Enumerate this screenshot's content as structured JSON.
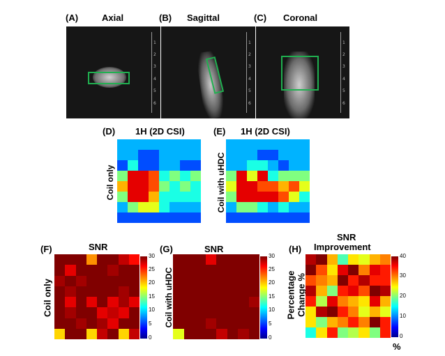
{
  "colors": {
    "roi": "#20b050"
  },
  "panels": {
    "a": {
      "letter": "(A)",
      "title": "Axial"
    },
    "b": {
      "letter": "(B)",
      "title": "Sagittal"
    },
    "c": {
      "letter": "(C)",
      "title": "Coronal"
    },
    "d": {
      "letter": "(D)",
      "title": "1H (2D CSI)",
      "ylabel": "Coil only"
    },
    "e": {
      "letter": "(E)",
      "title": "1H (2D CSI)",
      "ylabel": "Coil with uHDC"
    },
    "f": {
      "letter": "(F)",
      "title": "SNR",
      "ylabel": "Coil only"
    },
    "g": {
      "letter": "(G)",
      "title": "SNR",
      "ylabel": "Coil with uHDC"
    },
    "h": {
      "letter": "(H)",
      "title_line1": "SNR",
      "title_line2": "Improvement",
      "ylabel_line1": "Percentage",
      "ylabel_line2": "Change %",
      "unit": "%"
    }
  },
  "rulers": {
    "ticks": [
      "1",
      "2",
      "3",
      "4",
      "5",
      "6"
    ]
  },
  "colorbars": {
    "snr": {
      "ticks": [
        "30",
        "25",
        "20",
        "15",
        "10",
        "5",
        "0"
      ],
      "min": 0,
      "max": 30
    },
    "pct": {
      "ticks": [
        "40",
        "30",
        "20",
        "10",
        "0"
      ],
      "min": 0,
      "max": 40
    }
  },
  "maps": {
    "d": [
      [
        3,
        3,
        3,
        3,
        3,
        3,
        3,
        3
      ],
      [
        3,
        3,
        2,
        2,
        3,
        3,
        3,
        3
      ],
      [
        2,
        4,
        2,
        2,
        3,
        3,
        2,
        2
      ],
      [
        5,
        9,
        9,
        8,
        4,
        5,
        4,
        5
      ],
      [
        7,
        9,
        9,
        8,
        5,
        4,
        5,
        4
      ],
      [
        5,
        9,
        9,
        7,
        4,
        4,
        4,
        4
      ],
      [
        3,
        5,
        6,
        6,
        4,
        3,
        3,
        3
      ],
      [
        2,
        2,
        2,
        2,
        2,
        2,
        2,
        2
      ]
    ],
    "e": [
      [
        3,
        3,
        3,
        3,
        3,
        3,
        3,
        3
      ],
      [
        3,
        3,
        3,
        2,
        2,
        3,
        3,
        3
      ],
      [
        3,
        3,
        4,
        4,
        3,
        2,
        3,
        3
      ],
      [
        5,
        9,
        6,
        9,
        4,
        5,
        5,
        5
      ],
      [
        6,
        9,
        9,
        8,
        8,
        7,
        8,
        6
      ],
      [
        5,
        9,
        9,
        9,
        9,
        8,
        6,
        4
      ],
      [
        3,
        5,
        5,
        4,
        3,
        4,
        3,
        3
      ],
      [
        2,
        2,
        2,
        2,
        2,
        2,
        2,
        2
      ]
    ],
    "f": [
      [
        30,
        30,
        30,
        22,
        30,
        30,
        28,
        26
      ],
      [
        30,
        27,
        30,
        30,
        30,
        29,
        30,
        30
      ],
      [
        29,
        30,
        29,
        30,
        30,
        30,
        30,
        30
      ],
      [
        30,
        29,
        30,
        30,
        30,
        30,
        29,
        30
      ],
      [
        30,
        27,
        30,
        27,
        30,
        27,
        29,
        27
      ],
      [
        30,
        29,
        30,
        30,
        27,
        28,
        27,
        30
      ],
      [
        30,
        30,
        29,
        30,
        29,
        27,
        30,
        30
      ],
      [
        20,
        30,
        30,
        20,
        28,
        30,
        20,
        28
      ]
    ],
    "g": [
      [
        30,
        30,
        30,
        27,
        30,
        30,
        30,
        30
      ],
      [
        30,
        30,
        30,
        30,
        30,
        30,
        30,
        30
      ],
      [
        30,
        30,
        30,
        30,
        30,
        30,
        30,
        30
      ],
      [
        30,
        30,
        30,
        30,
        30,
        30,
        30,
        30
      ],
      [
        30,
        30,
        30,
        30,
        30,
        30,
        30,
        29
      ],
      [
        30,
        30,
        30,
        30,
        30,
        30,
        30,
        30
      ],
      [
        30,
        30,
        30,
        29,
        30,
        30,
        30,
        30
      ],
      [
        18,
        30,
        30,
        30,
        28,
        30,
        29,
        30
      ]
    ],
    "h": [
      [
        38,
        40,
        28,
        18,
        26,
        24,
        28,
        30
      ],
      [
        40,
        32,
        26,
        36,
        40,
        30,
        36,
        34
      ],
      [
        32,
        30,
        28,
        40,
        34,
        38,
        34,
        34
      ],
      [
        38,
        28,
        20,
        34,
        36,
        32,
        40,
        38
      ],
      [
        34,
        22,
        36,
        30,
        28,
        26,
        36,
        28
      ],
      [
        26,
        38,
        40,
        34,
        30,
        24,
        28,
        24
      ],
      [
        26,
        20,
        28,
        30,
        34,
        30,
        40,
        34
      ],
      [
        16,
        26,
        34,
        20,
        22,
        26,
        20,
        34
      ]
    ]
  }
}
